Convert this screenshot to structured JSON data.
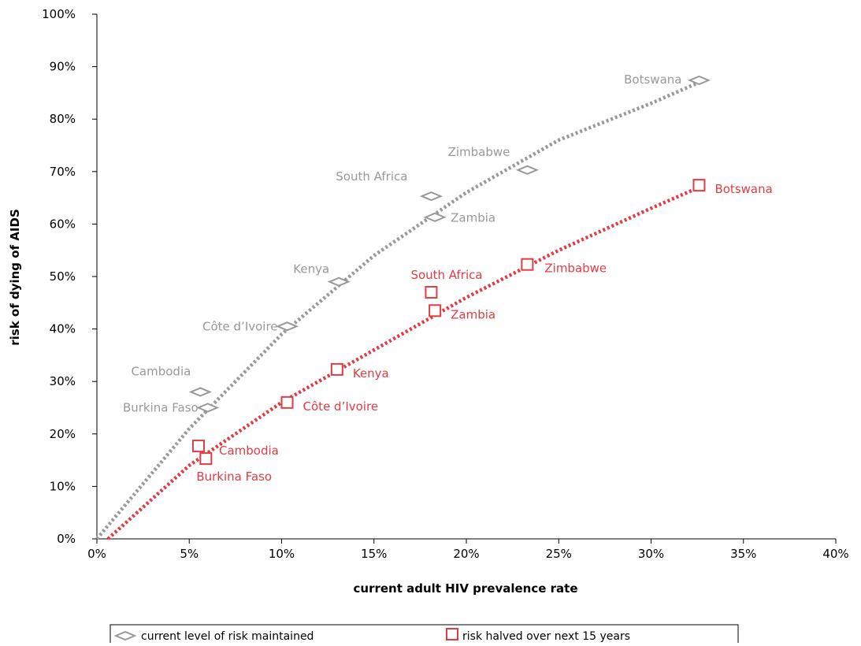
{
  "chart_data": {
    "type": "scatter",
    "xlabel": "current adult HIV prevalence rate",
    "ylabel": "risk of dying of AIDS",
    "xlim": [
      0,
      40
    ],
    "ylim": [
      0,
      100
    ],
    "x_ticks": [
      "0%",
      "5%",
      "10%",
      "15%",
      "20%",
      "25%",
      "30%",
      "35%",
      "40%"
    ],
    "y_ticks": [
      "0%",
      "10%",
      "20%",
      "30%",
      "40%",
      "50%",
      "60%",
      "70%",
      "80%",
      "90%",
      "100%"
    ],
    "legend_placement": "bottom",
    "colors": {
      "grey": "#999999",
      "red": "#E03C44"
    },
    "series": [
      {
        "name": "current level of risk maintained",
        "marker": "diamond",
        "color": "#999999",
        "points": [
          {
            "label": "Burkina Faso",
            "x": 6.0,
            "y": 25
          },
          {
            "label": "Cambodia",
            "x": 5.6,
            "y": 28
          },
          {
            "label": "Côte d’Ivoire",
            "x": 10.3,
            "y": 40.5
          },
          {
            "label": "Kenya",
            "x": 13.1,
            "y": 49
          },
          {
            "label": "South Africa",
            "x": 18.1,
            "y": 65.3
          },
          {
            "label": "Zambia",
            "x": 18.3,
            "y": 61.3
          },
          {
            "label": "Zimbabwe",
            "x": 23.3,
            "y": 70.3
          },
          {
            "label": "Botswana",
            "x": 32.6,
            "y": 87.4
          }
        ],
        "trend": [
          [
            0,
            0
          ],
          [
            5,
            21
          ],
          [
            10,
            39
          ],
          [
            15,
            54
          ],
          [
            20,
            66
          ],
          [
            25,
            76
          ],
          [
            30,
            83
          ],
          [
            32.6,
            87
          ]
        ]
      },
      {
        "name": "risk halved over next 15 years",
        "marker": "square",
        "color": "#E03C44",
        "points": [
          {
            "label": "Burkina Faso",
            "x": 5.9,
            "y": 15.3
          },
          {
            "label": "Cambodia",
            "x": 5.5,
            "y": 17.7
          },
          {
            "label": "Côte d’Ivoire",
            "x": 10.3,
            "y": 26
          },
          {
            "label": "Kenya",
            "x": 13.0,
            "y": 32.3
          },
          {
            "label": "South Africa",
            "x": 18.1,
            "y": 47
          },
          {
            "label": "Zambia",
            "x": 18.3,
            "y": 43.5
          },
          {
            "label": "Zimbabwe",
            "x": 23.3,
            "y": 52.3
          },
          {
            "label": "Botswana",
            "x": 32.6,
            "y": 67.4
          }
        ],
        "trend": [
          [
            0.6,
            0
          ],
          [
            5,
            14
          ],
          [
            10,
            26
          ],
          [
            15,
            36
          ],
          [
            20,
            46
          ],
          [
            25,
            55
          ],
          [
            30,
            63
          ],
          [
            32.6,
            67
          ]
        ]
      }
    ]
  }
}
